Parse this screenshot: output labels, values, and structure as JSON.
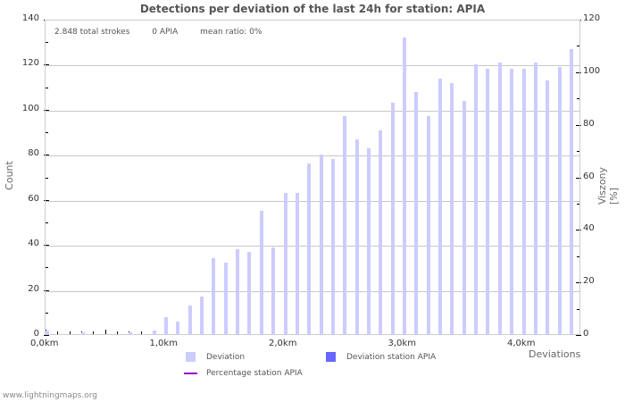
{
  "chart_data": {
    "type": "bar",
    "title": "Detections per deviation of the last 24h for station: APIA",
    "xlabel": "Deviations",
    "ylabel": "Count",
    "y2label": "Viszony [%]",
    "ylim": [
      0,
      140
    ],
    "y2lim": [
      0,
      120
    ],
    "yticks": [
      0,
      20,
      40,
      60,
      80,
      100,
      120,
      140
    ],
    "y2ticks": [
      0,
      20,
      40,
      60,
      80,
      100,
      120
    ],
    "xtick_labels": [
      "0,0km",
      "1,0km",
      "2,0km",
      "3,0km",
      "4,0km"
    ],
    "grid": true,
    "legend_position": "bottom",
    "categories_km": [
      0.0,
      0.1,
      0.2,
      0.3,
      0.4,
      0.5,
      0.6,
      0.7,
      0.8,
      0.9,
      1.0,
      1.1,
      1.2,
      1.3,
      1.4,
      1.5,
      1.6,
      1.7,
      1.8,
      1.9,
      2.0,
      2.1,
      2.2,
      2.3,
      2.4,
      2.5,
      2.6,
      2.7,
      2.8,
      2.9,
      3.0,
      3.1,
      3.2,
      3.3,
      3.4,
      3.5,
      3.6,
      3.7,
      3.8,
      3.9,
      4.0,
      4.1,
      4.2,
      4.3,
      4.4
    ],
    "series": [
      {
        "name": "Deviation",
        "color": "#ccccff",
        "values": [
          2,
          0,
          0,
          1,
          0,
          0,
          0,
          1,
          0,
          2,
          8,
          6,
          13,
          17,
          34,
          32,
          38,
          37,
          55,
          39,
          63,
          63,
          76,
          80,
          78,
          97,
          87,
          83,
          91,
          103,
          132,
          108,
          97,
          114,
          112,
          104,
          120,
          118,
          121,
          118,
          118,
          121,
          113,
          119,
          127
        ]
      },
      {
        "name": "Deviation station APIA",
        "color": "#6666ff",
        "values": [
          0,
          0,
          0,
          0,
          0,
          0,
          0,
          0,
          0,
          0,
          0,
          0,
          0,
          0,
          0,
          0,
          0,
          0,
          0,
          0,
          0,
          0,
          0,
          0,
          0,
          0,
          0,
          0,
          0,
          0,
          0,
          0,
          0,
          0,
          0,
          0,
          0,
          0,
          0,
          0,
          0,
          0,
          0,
          0,
          0
        ]
      },
      {
        "name": "Percentage station APIA",
        "color": "#9900cc",
        "type": "line",
        "values": []
      }
    ]
  },
  "annotation": {
    "total": "2.848 total strokes",
    "station": "0 APIA",
    "ratio": "mean ratio: 0%"
  },
  "legend": {
    "deviation": "Deviation",
    "deviation_station": "Deviation station APIA",
    "percentage_station": "Percentage station APIA"
  },
  "footer": "www.lightningmaps.org"
}
